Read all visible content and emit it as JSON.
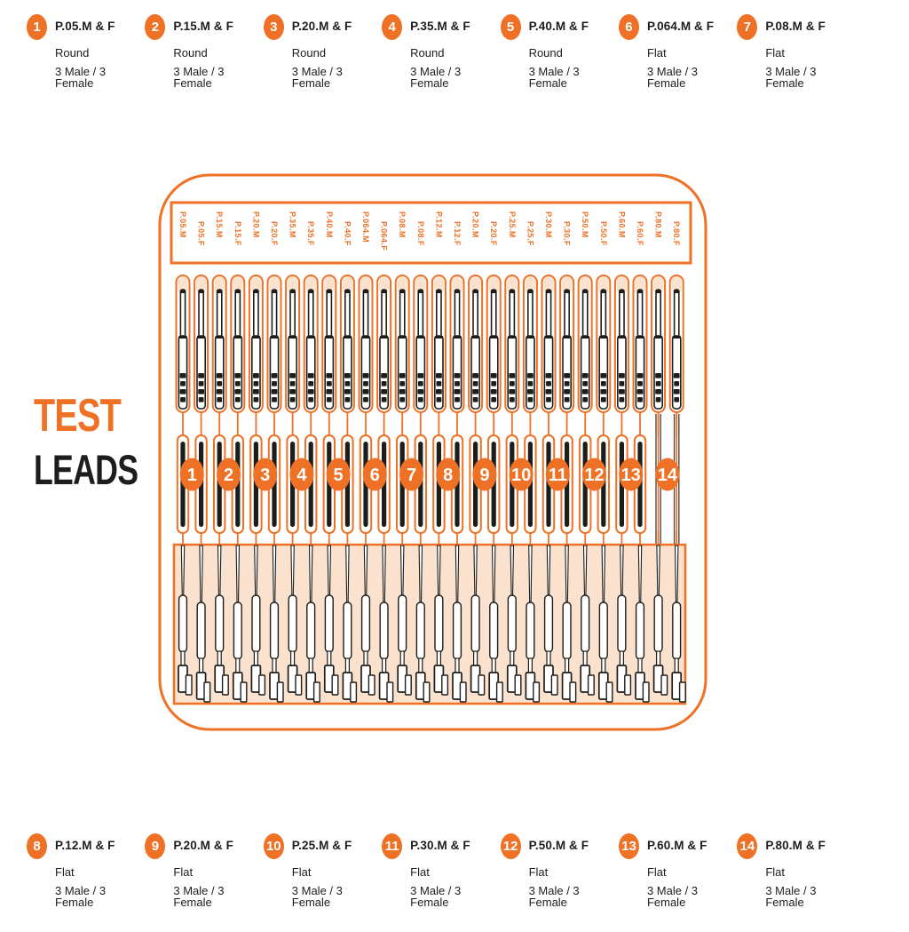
{
  "colors": {
    "orange": "#ee7125",
    "peach": "#fbe2cf",
    "ink": "#1d1d1b"
  },
  "brand": {
    "title_top": "TEST",
    "title_bottom": "LEADS"
  },
  "legend_top": [
    {
      "num": "1",
      "part": "P.05.M & F",
      "shape": "Round",
      "qty": "3 Male / 3 Female"
    },
    {
      "num": "2",
      "part": "P.15.M & F",
      "shape": "Round",
      "qty": "3 Male / 3 Female"
    },
    {
      "num": "3",
      "part": "P.20.M & F",
      "shape": "Round",
      "qty": "3 Male / 3 Female"
    },
    {
      "num": "4",
      "part": "P.35.M & F",
      "shape": "Round",
      "qty": "3 Male / 3 Female"
    },
    {
      "num": "5",
      "part": "P.40.M & F",
      "shape": "Round",
      "qty": "3 Male / 3 Female"
    },
    {
      "num": "6",
      "part": "P.064.M & F",
      "shape": "Flat",
      "qty": "3 Male / 3 Female"
    },
    {
      "num": "7",
      "part": "P.08.M & F",
      "shape": "Flat",
      "qty": "3 Male / 3 Female"
    }
  ],
  "legend_bottom": [
    {
      "num": "8",
      "part": "P.12.M & F",
      "shape": "Flat",
      "qty": "3 Male / 3 Female"
    },
    {
      "num": "9",
      "part": "P.20.M & F",
      "shape": "Flat",
      "qty": "3 Male / 3 Female"
    },
    {
      "num": "10",
      "part": "P.25.M & F",
      "shape": "Flat",
      "qty": "3 Male / 3 Female"
    },
    {
      "num": "11",
      "part": "P.30.M & F",
      "shape": "Flat",
      "qty": "3 Male / 3 Female"
    },
    {
      "num": "12",
      "part": "P.50.M & F",
      "shape": "Flat",
      "qty": "3 Male / 3 Female"
    },
    {
      "num": "13",
      "part": "P.60.M & F",
      "shape": "Flat",
      "qty": "3 Male / 3 Female"
    },
    {
      "num": "14",
      "part": "P.80.M & F",
      "shape": "Flat",
      "qty": "3 Male / 3 Female"
    }
  ],
  "case_diagram": {
    "slot_labels": [
      "P.05.M",
      "P.05.F",
      "P.15.M",
      "P.15.F",
      "P.20.M",
      "P.20.F",
      "P.35.M",
      "P.35.F",
      "P.40.M",
      "P.40.F",
      "P.064.M",
      "P.064.F",
      "P.08.M",
      "P.08.F",
      "P.12.M",
      "P.12.F",
      "P.20.M",
      "P.20.F",
      "P.25.M",
      "P.25.F",
      "P.30.M",
      "P.30.F",
      "P.50.M",
      "P.50.F",
      "P.60.M",
      "P.60.F",
      "P.80.M",
      "P.80.F"
    ],
    "pair_numbers": [
      "1",
      "2",
      "3",
      "4",
      "5",
      "6",
      "7",
      "8",
      "9",
      "10",
      "11",
      "12",
      "13",
      "14"
    ]
  }
}
